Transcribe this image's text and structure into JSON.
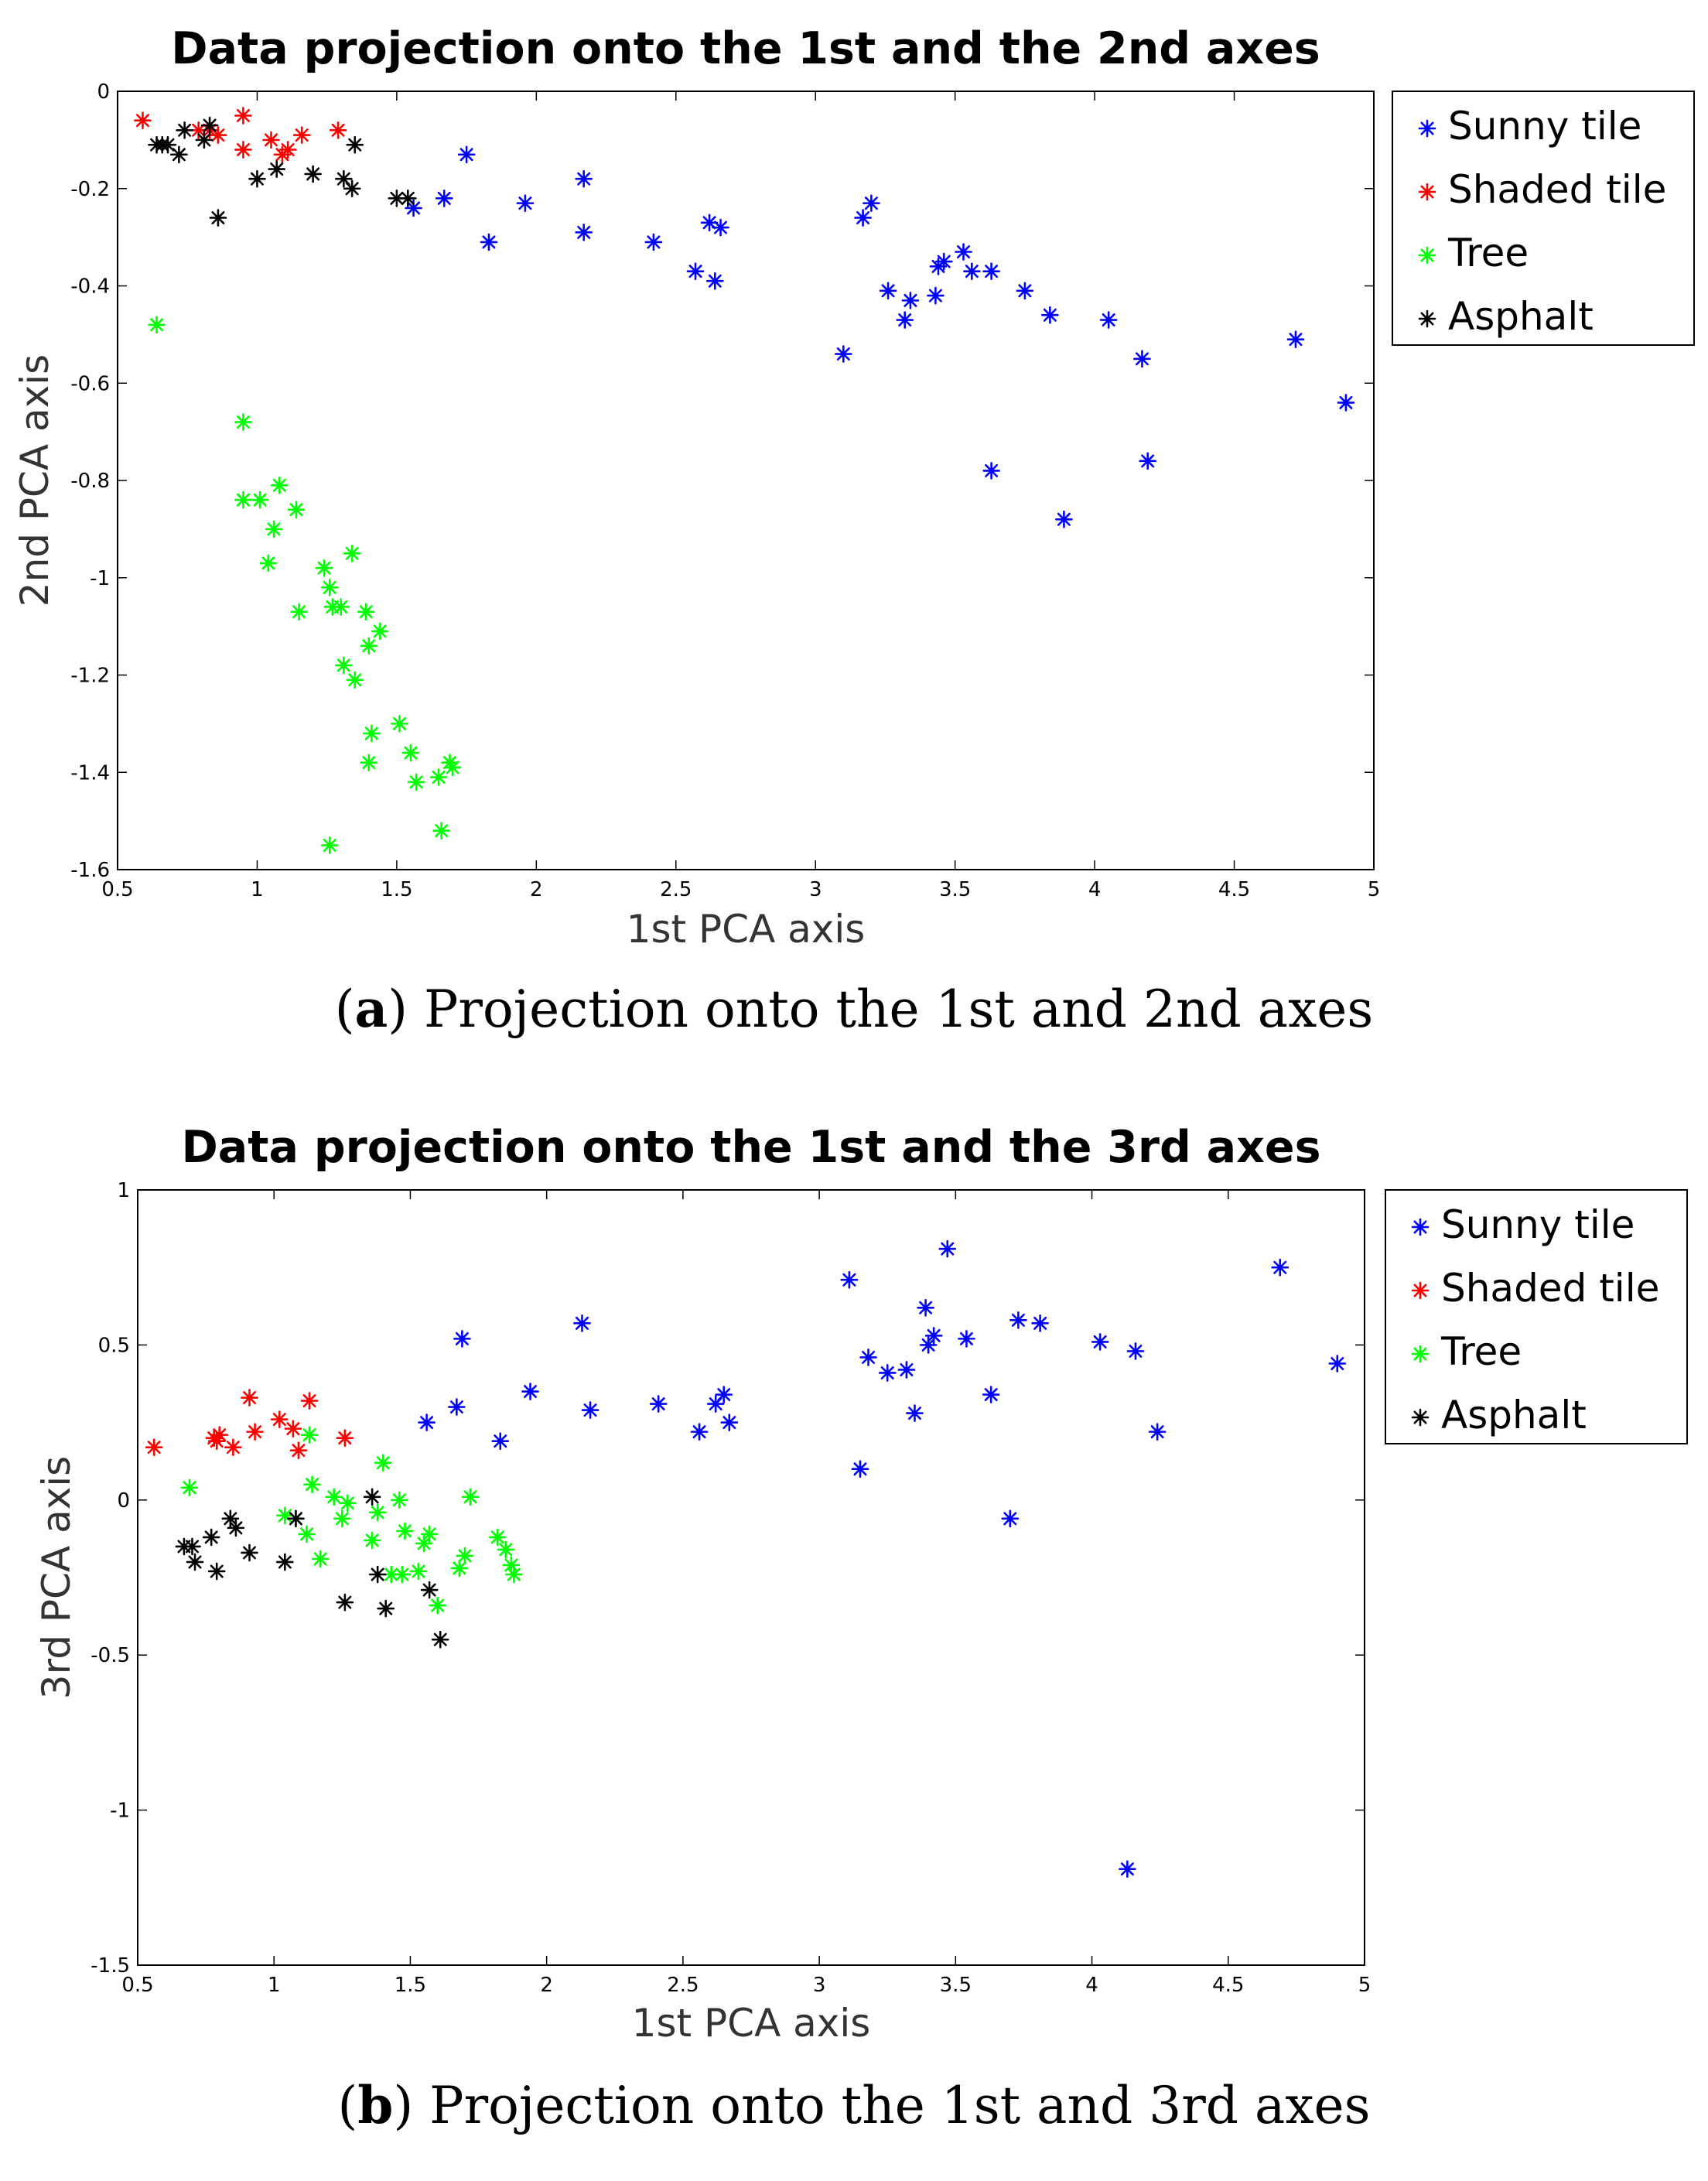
{
  "figures": [
    {
      "caption_letter": "a",
      "caption_text": "Projection onto the 1st and 2nd axes"
    },
    {
      "caption_letter": "b",
      "caption_text": "Projection onto the 1st and 3rd axes"
    }
  ],
  "chart_data": [
    {
      "type": "scatter",
      "title": "Data projection onto the 1st and the 2nd axes",
      "xlabel": "1st PCA axis",
      "ylabel": "2nd PCA axis",
      "xlim": [
        0.5,
        5
      ],
      "ylim": [
        -1.6,
        0
      ],
      "xticks": [
        "0.5",
        "1",
        "1.5",
        "2",
        "2.5",
        "3",
        "3.5",
        "4",
        "4.5",
        "5"
      ],
      "yticks": [
        "0",
        "-0.2",
        "-0.4",
        "-0.6",
        "-0.8",
        "-1",
        "-1.2",
        "-1.4",
        "-1.6"
      ],
      "legend_position": "outside-right-top",
      "series": [
        {
          "name": "Sunny tile",
          "color": "#0000ff",
          "points": [
            [
              1.56,
              -0.24
            ],
            [
              1.67,
              -0.22
            ],
            [
              1.75,
              -0.13
            ],
            [
              1.83,
              -0.31
            ],
            [
              1.96,
              -0.23
            ],
            [
              2.17,
              -0.18
            ],
            [
              2.17,
              -0.29
            ],
            [
              2.42,
              -0.31
            ],
            [
              2.57,
              -0.37
            ],
            [
              2.62,
              -0.27
            ],
            [
              2.64,
              -0.39
            ],
            [
              2.66,
              -0.28
            ],
            [
              3.1,
              -0.54
            ],
            [
              3.17,
              -0.26
            ],
            [
              3.2,
              -0.23
            ],
            [
              3.26,
              -0.41
            ],
            [
              3.32,
              -0.47
            ],
            [
              3.34,
              -0.43
            ],
            [
              3.43,
              -0.42
            ],
            [
              3.44,
              -0.36
            ],
            [
              3.46,
              -0.35
            ],
            [
              3.53,
              -0.33
            ],
            [
              3.56,
              -0.37
            ],
            [
              3.63,
              -0.37
            ],
            [
              3.63,
              -0.78
            ],
            [
              3.75,
              -0.41
            ],
            [
              3.84,
              -0.46
            ],
            [
              3.89,
              -0.88
            ],
            [
              4.05,
              -0.47
            ],
            [
              4.17,
              -0.55
            ],
            [
              4.19,
              -0.76
            ],
            [
              4.72,
              -0.51
            ],
            [
              4.9,
              -0.64
            ]
          ]
        },
        {
          "name": "Shaded tile",
          "color": "#ff0000",
          "points": [
            [
              0.59,
              -0.06
            ],
            [
              0.79,
              -0.08
            ],
            [
              0.83,
              -0.08
            ],
            [
              0.86,
              -0.09
            ],
            [
              0.95,
              -0.05
            ],
            [
              0.95,
              -0.12
            ],
            [
              1.05,
              -0.1
            ],
            [
              1.09,
              -0.13
            ],
            [
              1.11,
              -0.12
            ],
            [
              1.16,
              -0.09
            ],
            [
              1.29,
              -0.08
            ]
          ]
        },
        {
          "name": "Tree",
          "color": "#00ff00",
          "points": [
            [
              0.64,
              -0.48
            ],
            [
              0.95,
              -0.68
            ],
            [
              0.95,
              -0.84
            ],
            [
              1.01,
              -0.84
            ],
            [
              1.04,
              -0.97
            ],
            [
              1.06,
              -0.9
            ],
            [
              1.08,
              -0.81
            ],
            [
              1.14,
              -0.86
            ],
            [
              1.15,
              -1.07
            ],
            [
              1.24,
              -0.98
            ],
            [
              1.26,
              -1.02
            ],
            [
              1.27,
              -1.06
            ],
            [
              1.3,
              -1.06
            ],
            [
              1.31,
              -1.18
            ],
            [
              1.34,
              -0.95
            ],
            [
              1.35,
              -1.21
            ],
            [
              1.39,
              -1.07
            ],
            [
              1.4,
              -1.14
            ],
            [
              1.4,
              -1.38
            ],
            [
              1.41,
              -1.32
            ],
            [
              1.44,
              -1.11
            ],
            [
              1.26,
              -1.55
            ],
            [
              1.51,
              -1.3
            ],
            [
              1.55,
              -1.36
            ],
            [
              1.57,
              -1.42
            ],
            [
              1.65,
              -1.41
            ],
            [
              1.66,
              -1.52
            ],
            [
              1.69,
              -1.38
            ],
            [
              1.7,
              -1.39
            ]
          ]
        },
        {
          "name": "Asphalt",
          "color": "#000000",
          "points": [
            [
              0.64,
              -0.11
            ],
            [
              0.66,
              -0.11
            ],
            [
              0.68,
              -0.11
            ],
            [
              0.72,
              -0.13
            ],
            [
              0.74,
              -0.08
            ],
            [
              0.81,
              -0.1
            ],
            [
              0.83,
              -0.07
            ],
            [
              0.86,
              -0.26
            ],
            [
              1.0,
              -0.18
            ],
            [
              1.07,
              -0.16
            ],
            [
              1.2,
              -0.17
            ],
            [
              1.31,
              -0.18
            ],
            [
              1.34,
              -0.2
            ],
            [
              1.35,
              -0.11
            ],
            [
              1.5,
              -0.22
            ],
            [
              1.54,
              -0.22
            ]
          ]
        }
      ]
    },
    {
      "type": "scatter",
      "title": "Data projection onto the 1st and the 3rd axes",
      "xlabel": "1st PCA axis",
      "ylabel": "3rd PCA axis",
      "xlim": [
        0.5,
        5
      ],
      "ylim": [
        -1.5,
        1
      ],
      "xticks": [
        "0.5",
        "1",
        "1.5",
        "2",
        "2.5",
        "3",
        "3.5",
        "4",
        "4.5",
        "5"
      ],
      "yticks": [
        "1",
        "0.5",
        "0",
        "-0.5",
        "-1",
        "-1.5"
      ],
      "legend_position": "outside-right-top",
      "series": [
        {
          "name": "Sunny tile",
          "color": "#0000ff",
          "points": [
            [
              1.56,
              0.25
            ],
            [
              1.67,
              0.3
            ],
            [
              1.69,
              0.52
            ],
            [
              1.83,
              0.19
            ],
            [
              1.94,
              0.35
            ],
            [
              2.13,
              0.57
            ],
            [
              2.16,
              0.29
            ],
            [
              2.41,
              0.31
            ],
            [
              2.56,
              0.22
            ],
            [
              2.62,
              0.31
            ],
            [
              2.65,
              0.34
            ],
            [
              2.67,
              0.25
            ],
            [
              3.11,
              0.71
            ],
            [
              3.15,
              0.1
            ],
            [
              3.18,
              0.46
            ],
            [
              3.25,
              0.41
            ],
            [
              3.32,
              0.42
            ],
            [
              3.35,
              0.28
            ],
            [
              3.39,
              0.62
            ],
            [
              3.4,
              0.5
            ],
            [
              3.42,
              0.53
            ],
            [
              3.47,
              0.81
            ],
            [
              3.54,
              0.52
            ],
            [
              3.63,
              0.34
            ],
            [
              3.7,
              -0.06
            ],
            [
              3.73,
              0.58
            ],
            [
              3.81,
              0.57
            ],
            [
              4.03,
              0.51
            ],
            [
              4.13,
              -1.19
            ],
            [
              4.16,
              0.48
            ],
            [
              4.24,
              0.22
            ],
            [
              4.69,
              0.75
            ],
            [
              4.9,
              0.44
            ]
          ]
        },
        {
          "name": "Shaded tile",
          "color": "#ff0000",
          "points": [
            [
              0.56,
              0.17
            ],
            [
              0.78,
              0.2
            ],
            [
              0.79,
              0.19
            ],
            [
              0.8,
              0.21
            ],
            [
              0.85,
              0.17
            ],
            [
              0.91,
              0.33
            ],
            [
              0.93,
              0.22
            ],
            [
              1.02,
              0.26
            ],
            [
              1.07,
              0.23
            ],
            [
              1.09,
              0.16
            ],
            [
              1.13,
              0.32
            ],
            [
              1.26,
              0.2
            ]
          ]
        },
        {
          "name": "Tree",
          "color": "#00ff00",
          "points": [
            [
              0.69,
              0.04
            ],
            [
              1.04,
              -0.05
            ],
            [
              1.08,
              -0.06
            ],
            [
              1.12,
              -0.11
            ],
            [
              1.13,
              0.21
            ],
            [
              1.14,
              0.05
            ],
            [
              1.17,
              -0.19
            ],
            [
              1.22,
              0.01
            ],
            [
              1.25,
              -0.06
            ],
            [
              1.27,
              -0.01
            ],
            [
              1.36,
              -0.13
            ],
            [
              1.38,
              -0.04
            ],
            [
              1.4,
              0.12
            ],
            [
              1.43,
              -0.24
            ],
            [
              1.46,
              0.0
            ],
            [
              1.47,
              -0.24
            ],
            [
              1.48,
              -0.1
            ],
            [
              1.53,
              -0.23
            ],
            [
              1.55,
              -0.14
            ],
            [
              1.57,
              -0.11
            ],
            [
              1.6,
              -0.34
            ],
            [
              1.68,
              -0.22
            ],
            [
              1.7,
              -0.18
            ],
            [
              1.72,
              0.01
            ],
            [
              1.82,
              -0.12
            ],
            [
              1.85,
              -0.16
            ],
            [
              1.87,
              -0.21
            ],
            [
              1.88,
              -0.24
            ]
          ]
        },
        {
          "name": "Asphalt",
          "color": "#000000",
          "points": [
            [
              0.67,
              -0.15
            ],
            [
              0.7,
              -0.15
            ],
            [
              0.71,
              -0.2
            ],
            [
              0.77,
              -0.12
            ],
            [
              0.79,
              -0.23
            ],
            [
              0.84,
              -0.06
            ],
            [
              0.86,
              -0.09
            ],
            [
              0.91,
              -0.17
            ],
            [
              1.04,
              -0.2
            ],
            [
              1.08,
              -0.06
            ],
            [
              1.26,
              -0.33
            ],
            [
              1.36,
              0.01
            ],
            [
              1.38,
              -0.24
            ],
            [
              1.41,
              -0.35
            ],
            [
              1.57,
              -0.29
            ],
            [
              1.61,
              -0.45
            ]
          ]
        }
      ]
    }
  ]
}
